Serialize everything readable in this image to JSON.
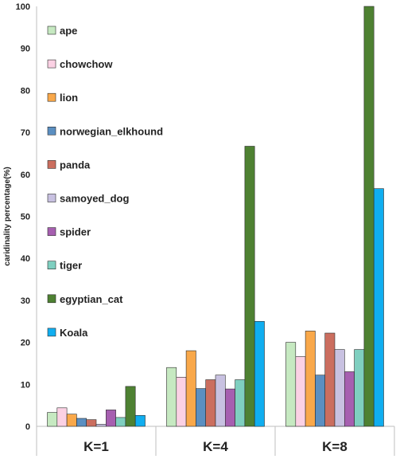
{
  "chart_data": {
    "type": "bar",
    "title": "",
    "xlabel": "",
    "ylabel": "caridinality percentage(%)",
    "ylim": [
      0,
      100
    ],
    "yticks": [
      0,
      10,
      20,
      30,
      40,
      50,
      60,
      70,
      80,
      90,
      100
    ],
    "grid": false,
    "legend_position": "top-left",
    "categories": [
      "K=1",
      "K=4",
      "K=8"
    ],
    "series": [
      {
        "name": "ape",
        "color": "#c6e9c1",
        "values": [
          3.3,
          14.0,
          20.0
        ]
      },
      {
        "name": "chowchow",
        "color": "#fbd1e4",
        "values": [
          4.4,
          11.7,
          16.6
        ]
      },
      {
        "name": "lion",
        "color": "#f9a84a",
        "values": [
          2.9,
          18.0,
          22.7
        ]
      },
      {
        "name": "norwegian_elkhound",
        "color": "#5b8fc1",
        "values": [
          1.9,
          9.0,
          12.2
        ]
      },
      {
        "name": "panda",
        "color": "#cb6e5f",
        "values": [
          1.6,
          11.1,
          22.2
        ]
      },
      {
        "name": "samoyed_dog",
        "color": "#c8c1e1",
        "values": [
          0.5,
          12.2,
          18.3
        ]
      },
      {
        "name": "spider",
        "color": "#a65fb0",
        "values": [
          3.9,
          8.9,
          13.0
        ]
      },
      {
        "name": "tiger",
        "color": "#7fcfc0",
        "values": [
          2.1,
          11.1,
          18.3
        ]
      },
      {
        "name": "egyptian_cat",
        "color": "#4e8132",
        "values": [
          9.5,
          66.7,
          100
        ]
      },
      {
        "name": "Koala",
        "color": "#10aef0",
        "values": [
          2.6,
          25.0,
          56.6
        ]
      }
    ]
  }
}
